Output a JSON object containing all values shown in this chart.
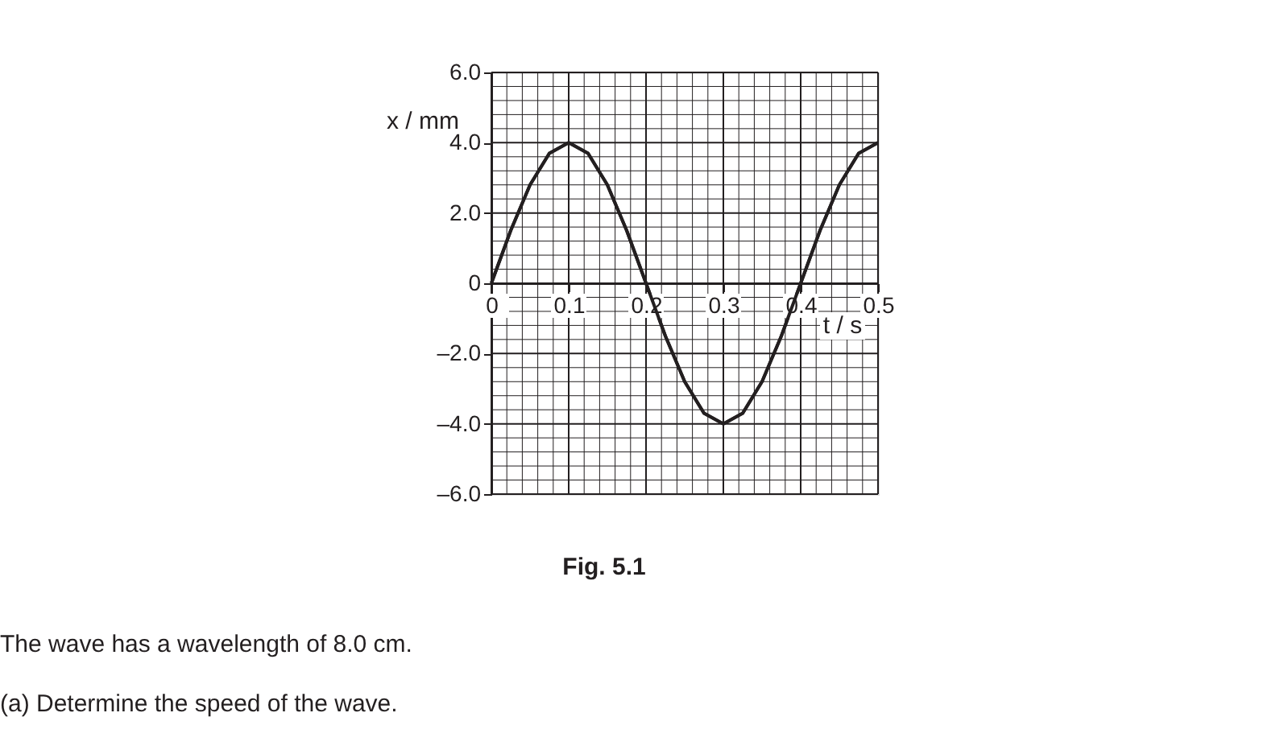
{
  "chart_data": {
    "type": "line",
    "xlabel": "t / s",
    "ylabel": "x / mm",
    "x": [
      0,
      0.025,
      0.05,
      0.075,
      0.1,
      0.125,
      0.15,
      0.175,
      0.2,
      0.225,
      0.25,
      0.275,
      0.3,
      0.325,
      0.35,
      0.375,
      0.4,
      0.425,
      0.45,
      0.475,
      0.5
    ],
    "series": [
      {
        "color": "#231f20",
        "values": [
          0,
          1.5,
          2.8,
          3.7,
          4.0,
          3.7,
          2.8,
          1.5,
          0,
          -1.5,
          -2.8,
          -3.7,
          -4.0,
          -3.7,
          -2.8,
          -1.5,
          0,
          1.5,
          2.8,
          3.7,
          4.0
        ]
      }
    ],
    "xlim": [
      0,
      0.5
    ],
    "xticks": [
      0,
      0.1,
      0.2,
      0.3,
      0.4,
      0.5
    ],
    "ylim": [
      -6,
      6
    ],
    "yticks": [
      {
        "value": -6,
        "label": "–6.0"
      },
      {
        "value": -4,
        "label": "–4.0"
      },
      {
        "value": -2,
        "label": "–2.0"
      },
      0,
      {
        "value": 2,
        "label": "2.0"
      },
      {
        "value": 4,
        "label": "4.0"
      },
      {
        "value": 6,
        "label": "6.0"
      }
    ],
    "grid": true,
    "marker": "none",
    "line_style": "solid",
    "annotations": [
      "Fig. 5.1",
      "The wave has a wavelength of 8.0 cm.",
      "(a)  Determine the speed of the wave."
    ]
  }
}
